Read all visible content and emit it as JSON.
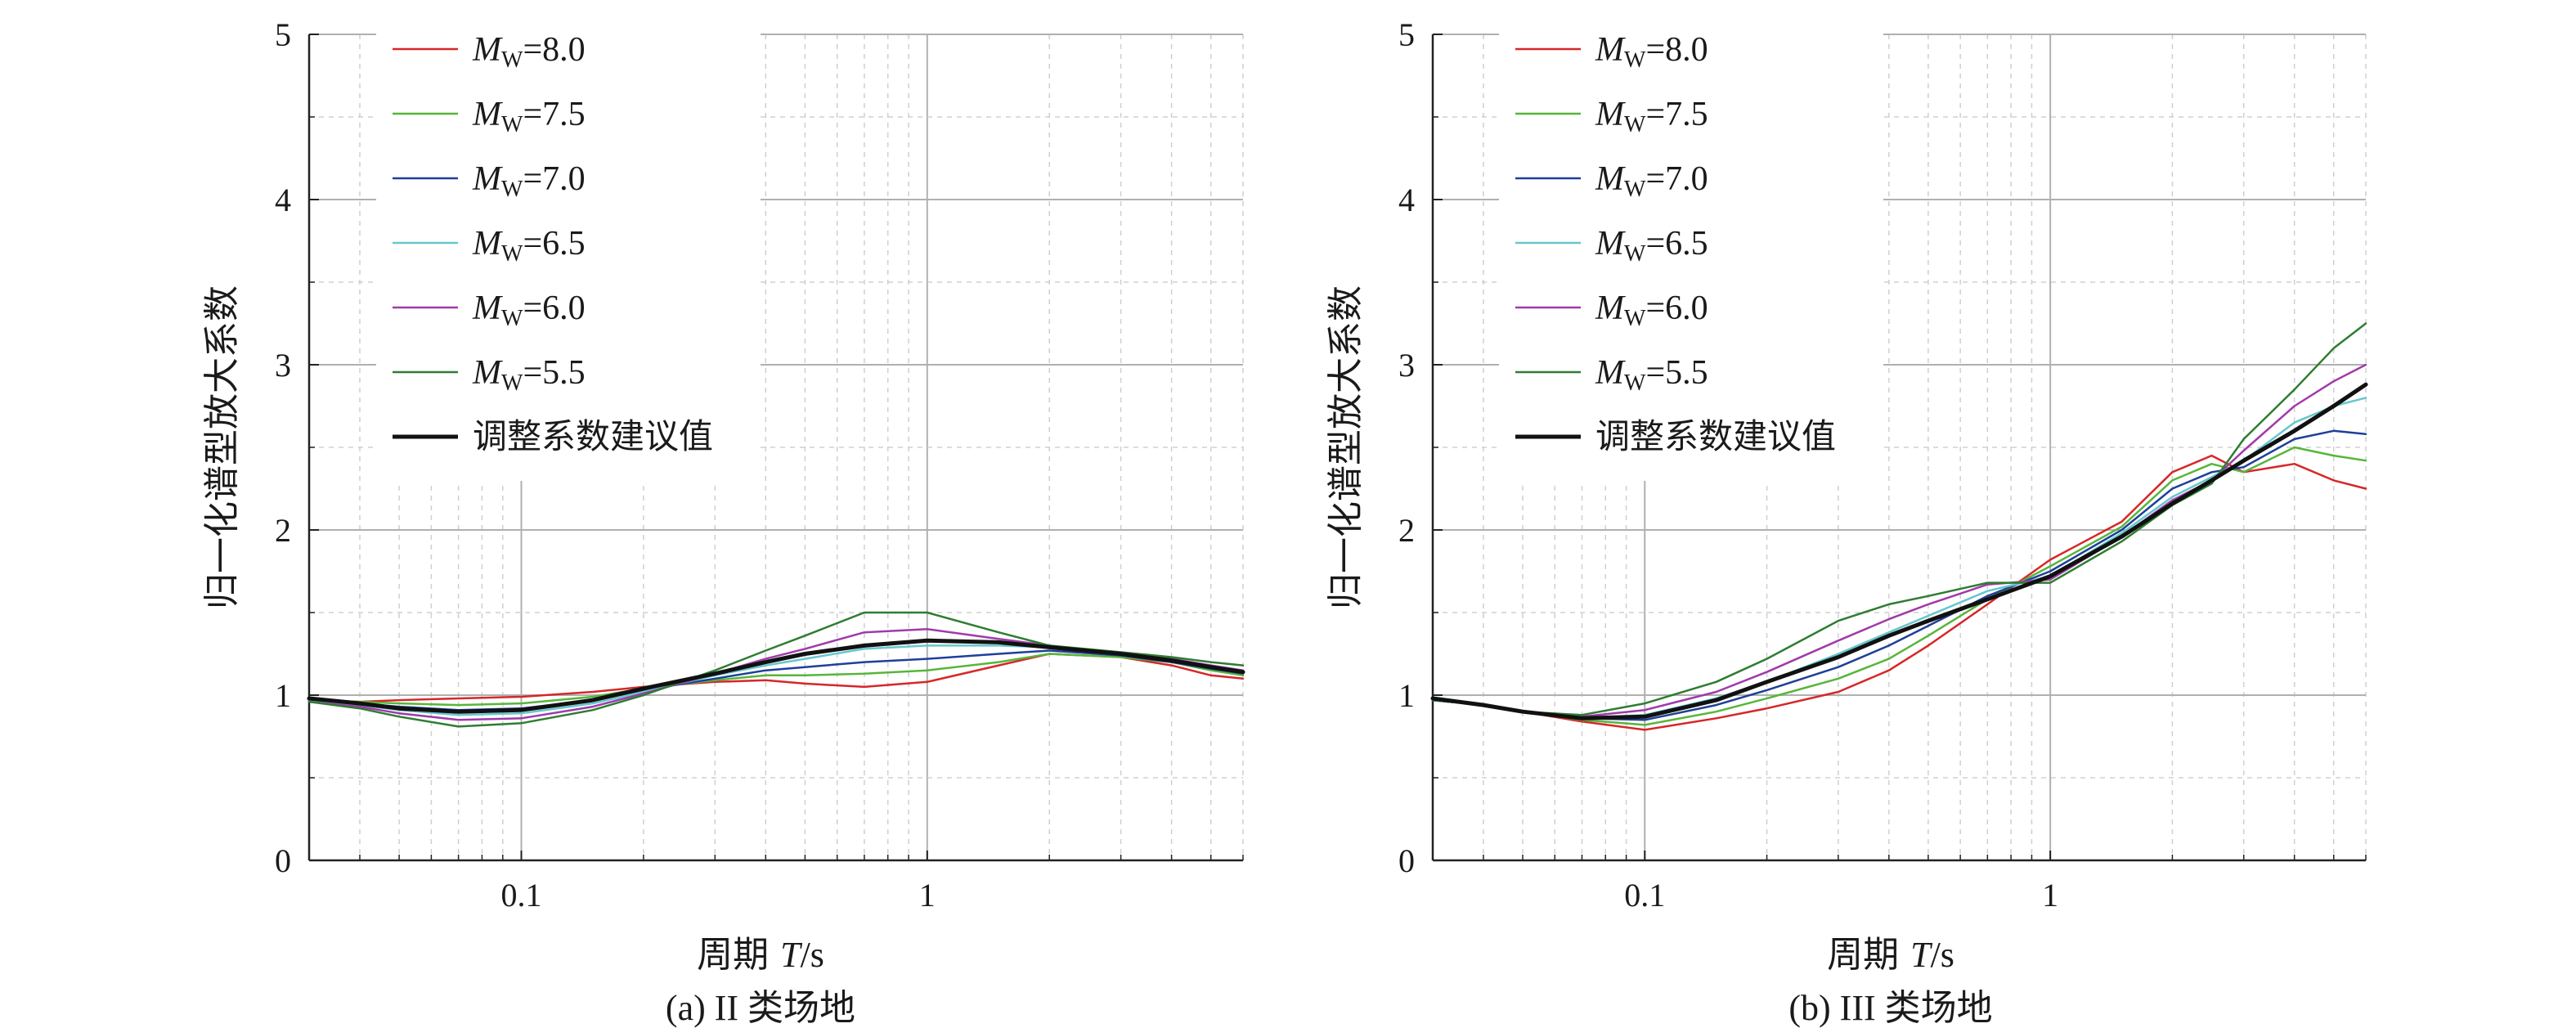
{
  "chart_data": [
    {
      "type": "line",
      "caption": "(a) II 类场地",
      "xlabel": "周期 T/s",
      "xlabel_parts": [
        "周期 ",
        "T",
        "/s"
      ],
      "ylabel": "归一化谱型放大系数",
      "xscale": "log",
      "xlim": [
        0.03,
        6.0
      ],
      "ylim": [
        0,
        5
      ],
      "yticks": [
        "0",
        "1",
        "2",
        "3",
        "4",
        "5"
      ],
      "xticks": [
        {
          "value": 0.1,
          "label": "0.1"
        },
        {
          "value": 1,
          "label": "1"
        }
      ],
      "grid": true,
      "legend_position": "top-left",
      "series": [
        {
          "name": "Mw=8.0",
          "sym": "M",
          "sub": "W",
          "rest": "=8.0",
          "color": "#d62728",
          "width": 2.5,
          "x": [
            0.03,
            0.04,
            0.05,
            0.07,
            0.1,
            0.15,
            0.2,
            0.3,
            0.4,
            0.5,
            0.7,
            1.0,
            1.5,
            2.0,
            3.0,
            4.0,
            5.0,
            6.0
          ],
          "y": [
            0.97,
            0.96,
            0.97,
            0.98,
            0.99,
            1.02,
            1.05,
            1.08,
            1.09,
            1.07,
            1.05,
            1.08,
            1.18,
            1.25,
            1.23,
            1.18,
            1.12,
            1.1
          ]
        },
        {
          "name": "Mw=7.5",
          "sym": "M",
          "sub": "W",
          "rest": "=7.5",
          "color": "#56b63a",
          "width": 2.5,
          "x": [
            0.03,
            0.04,
            0.05,
            0.07,
            0.1,
            0.15,
            0.2,
            0.3,
            0.4,
            0.5,
            0.7,
            1.0,
            1.5,
            2.0,
            3.0,
            4.0,
            5.0,
            6.0
          ],
          "y": [
            0.97,
            0.96,
            0.95,
            0.94,
            0.95,
            0.99,
            1.04,
            1.09,
            1.12,
            1.12,
            1.13,
            1.15,
            1.2,
            1.25,
            1.23,
            1.2,
            1.15,
            1.12
          ]
        },
        {
          "name": "Mw=7.0",
          "sym": "M",
          "sub": "W",
          "rest": "=7.0",
          "color": "#1f3f9a",
          "width": 2.5,
          "x": [
            0.03,
            0.04,
            0.05,
            0.07,
            0.1,
            0.15,
            0.2,
            0.3,
            0.4,
            0.5,
            0.7,
            1.0,
            1.5,
            2.0,
            3.0,
            4.0,
            5.0,
            6.0
          ],
          "y": [
            0.97,
            0.95,
            0.93,
            0.91,
            0.92,
            0.97,
            1.03,
            1.1,
            1.15,
            1.17,
            1.2,
            1.22,
            1.25,
            1.27,
            1.24,
            1.2,
            1.16,
            1.13
          ]
        },
        {
          "name": "Mw=6.5",
          "sym": "M",
          "sub": "W",
          "rest": "=6.5",
          "color": "#66c7cf",
          "width": 2.5,
          "x": [
            0.03,
            0.04,
            0.05,
            0.07,
            0.1,
            0.15,
            0.2,
            0.3,
            0.4,
            0.5,
            0.7,
            1.0,
            1.5,
            2.0,
            3.0,
            4.0,
            5.0,
            6.0
          ],
          "y": [
            0.97,
            0.94,
            0.91,
            0.88,
            0.89,
            0.95,
            1.02,
            1.12,
            1.18,
            1.22,
            1.28,
            1.3,
            1.3,
            1.29,
            1.25,
            1.21,
            1.17,
            1.14
          ]
        },
        {
          "name": "Mw=6.0",
          "sym": "M",
          "sub": "W",
          "rest": "=6.0",
          "color": "#a03aaa",
          "width": 2.5,
          "x": [
            0.03,
            0.04,
            0.05,
            0.07,
            0.1,
            0.15,
            0.2,
            0.3,
            0.4,
            0.5,
            0.7,
            1.0,
            1.5,
            2.0,
            3.0,
            4.0,
            5.0,
            6.0
          ],
          "y": [
            0.96,
            0.93,
            0.89,
            0.85,
            0.86,
            0.93,
            1.01,
            1.13,
            1.22,
            1.28,
            1.38,
            1.4,
            1.34,
            1.3,
            1.25,
            1.22,
            1.18,
            1.15
          ]
        },
        {
          "name": "Mw=5.5",
          "sym": "M",
          "sub": "W",
          "rest": "=5.5",
          "color": "#2e7d32",
          "width": 2.5,
          "x": [
            0.03,
            0.04,
            0.05,
            0.07,
            0.1,
            0.15,
            0.2,
            0.3,
            0.4,
            0.5,
            0.7,
            1.0,
            1.5,
            2.0,
            3.0,
            4.0,
            5.0,
            6.0
          ],
          "y": [
            0.96,
            0.92,
            0.87,
            0.81,
            0.83,
            0.91,
            1.0,
            1.15,
            1.27,
            1.36,
            1.5,
            1.5,
            1.38,
            1.3,
            1.26,
            1.23,
            1.2,
            1.18
          ]
        },
        {
          "name": "调整系数建议值",
          "color": "#111111",
          "width": 5,
          "x": [
            0.03,
            0.04,
            0.05,
            0.07,
            0.1,
            0.15,
            0.2,
            0.3,
            0.4,
            0.5,
            0.7,
            1.0,
            1.5,
            2.0,
            3.0,
            4.0,
            5.0,
            6.0
          ],
          "y": [
            0.98,
            0.95,
            0.92,
            0.9,
            0.91,
            0.97,
            1.04,
            1.13,
            1.2,
            1.25,
            1.3,
            1.33,
            1.32,
            1.29,
            1.25,
            1.21,
            1.17,
            1.14
          ]
        }
      ]
    },
    {
      "type": "line",
      "caption": "(b) III 类场地",
      "xlabel": "周期 T/s",
      "xlabel_parts": [
        "周期 ",
        "T",
        "/s"
      ],
      "ylabel": "归一化谱型放大系数",
      "xscale": "log",
      "xlim": [
        0.03,
        6.0
      ],
      "ylim": [
        0,
        5
      ],
      "yticks": [
        "0",
        "1",
        "2",
        "3",
        "4",
        "5"
      ],
      "xticks": [
        {
          "value": 0.1,
          "label": "0.1"
        },
        {
          "value": 1,
          "label": "1"
        }
      ],
      "grid": true,
      "legend_position": "top-left",
      "series": [
        {
          "name": "Mw=8.0",
          "sym": "M",
          "sub": "W",
          "rest": "=8.0",
          "color": "#d62728",
          "width": 2.5,
          "x": [
            0.03,
            0.04,
            0.05,
            0.07,
            0.1,
            0.15,
            0.2,
            0.3,
            0.4,
            0.5,
            0.7,
            1.0,
            1.5,
            2.0,
            2.5,
            3.0,
            4.0,
            5.0,
            6.0
          ],
          "y": [
            0.97,
            0.94,
            0.9,
            0.84,
            0.79,
            0.86,
            0.92,
            1.02,
            1.15,
            1.3,
            1.55,
            1.82,
            2.05,
            2.35,
            2.45,
            2.35,
            2.4,
            2.3,
            2.25
          ]
        },
        {
          "name": "Mw=7.5",
          "sym": "M",
          "sub": "W",
          "rest": "=7.5",
          "color": "#56b63a",
          "width": 2.5,
          "x": [
            0.03,
            0.04,
            0.05,
            0.07,
            0.1,
            0.15,
            0.2,
            0.3,
            0.4,
            0.5,
            0.7,
            1.0,
            1.5,
            2.0,
            2.5,
            3.0,
            4.0,
            5.0,
            6.0
          ],
          "y": [
            0.97,
            0.94,
            0.9,
            0.85,
            0.82,
            0.9,
            0.98,
            1.1,
            1.22,
            1.36,
            1.58,
            1.78,
            2.02,
            2.3,
            2.4,
            2.35,
            2.5,
            2.45,
            2.42
          ]
        },
        {
          "name": "Mw=7.0",
          "sym": "M",
          "sub": "W",
          "rest": "=7.0",
          "color": "#1f3f9a",
          "width": 2.5,
          "x": [
            0.03,
            0.04,
            0.05,
            0.07,
            0.1,
            0.15,
            0.2,
            0.3,
            0.4,
            0.5,
            0.7,
            1.0,
            1.5,
            2.0,
            2.5,
            3.0,
            4.0,
            5.0,
            6.0
          ],
          "y": [
            0.97,
            0.94,
            0.9,
            0.86,
            0.85,
            0.94,
            1.03,
            1.17,
            1.3,
            1.42,
            1.6,
            1.75,
            2.0,
            2.25,
            2.35,
            2.38,
            2.55,
            2.6,
            2.58
          ]
        },
        {
          "name": "Mw=6.5",
          "sym": "M",
          "sub": "W",
          "rest": "=6.5",
          "color": "#66c7cf",
          "width": 2.5,
          "x": [
            0.03,
            0.04,
            0.05,
            0.07,
            0.1,
            0.15,
            0.2,
            0.3,
            0.4,
            0.5,
            0.7,
            1.0,
            1.5,
            2.0,
            2.5,
            3.0,
            4.0,
            5.0,
            6.0
          ],
          "y": [
            0.97,
            0.94,
            0.9,
            0.86,
            0.88,
            0.98,
            1.08,
            1.25,
            1.38,
            1.48,
            1.63,
            1.72,
            1.98,
            2.2,
            2.32,
            2.42,
            2.65,
            2.75,
            2.8
          ]
        },
        {
          "name": "Mw=6.0",
          "sym": "M",
          "sub": "W",
          "rest": "=6.0",
          "color": "#a03aaa",
          "width": 2.5,
          "x": [
            0.03,
            0.04,
            0.05,
            0.07,
            0.1,
            0.15,
            0.2,
            0.3,
            0.4,
            0.5,
            0.7,
            1.0,
            1.5,
            2.0,
            2.5,
            3.0,
            4.0,
            5.0,
            6.0
          ],
          "y": [
            0.97,
            0.94,
            0.9,
            0.87,
            0.91,
            1.02,
            1.14,
            1.33,
            1.46,
            1.55,
            1.67,
            1.7,
            1.96,
            2.18,
            2.3,
            2.48,
            2.75,
            2.9,
            3.0
          ]
        },
        {
          "name": "Mw=5.5",
          "sym": "M",
          "sub": "W",
          "rest": "=5.5",
          "color": "#2e7d32",
          "width": 2.5,
          "x": [
            0.03,
            0.04,
            0.05,
            0.07,
            0.1,
            0.15,
            0.2,
            0.3,
            0.4,
            0.5,
            0.7,
            1.0,
            1.5,
            2.0,
            2.5,
            3.0,
            4.0,
            5.0,
            6.0
          ],
          "y": [
            0.97,
            0.94,
            0.9,
            0.88,
            0.95,
            1.08,
            1.22,
            1.45,
            1.55,
            1.6,
            1.68,
            1.68,
            1.93,
            2.15,
            2.28,
            2.55,
            2.85,
            3.1,
            3.25
          ]
        },
        {
          "name": "调整系数建议值",
          "color": "#111111",
          "width": 5,
          "x": [
            0.03,
            0.04,
            0.05,
            0.07,
            0.1,
            0.15,
            0.2,
            0.3,
            0.4,
            0.5,
            0.7,
            1.0,
            1.5,
            2.0,
            2.5,
            3.0,
            4.0,
            5.0,
            6.0
          ],
          "y": [
            0.98,
            0.94,
            0.9,
            0.86,
            0.87,
            0.97,
            1.08,
            1.23,
            1.36,
            1.45,
            1.58,
            1.72,
            1.96,
            2.16,
            2.3,
            2.42,
            2.6,
            2.75,
            2.88
          ]
        }
      ]
    }
  ]
}
